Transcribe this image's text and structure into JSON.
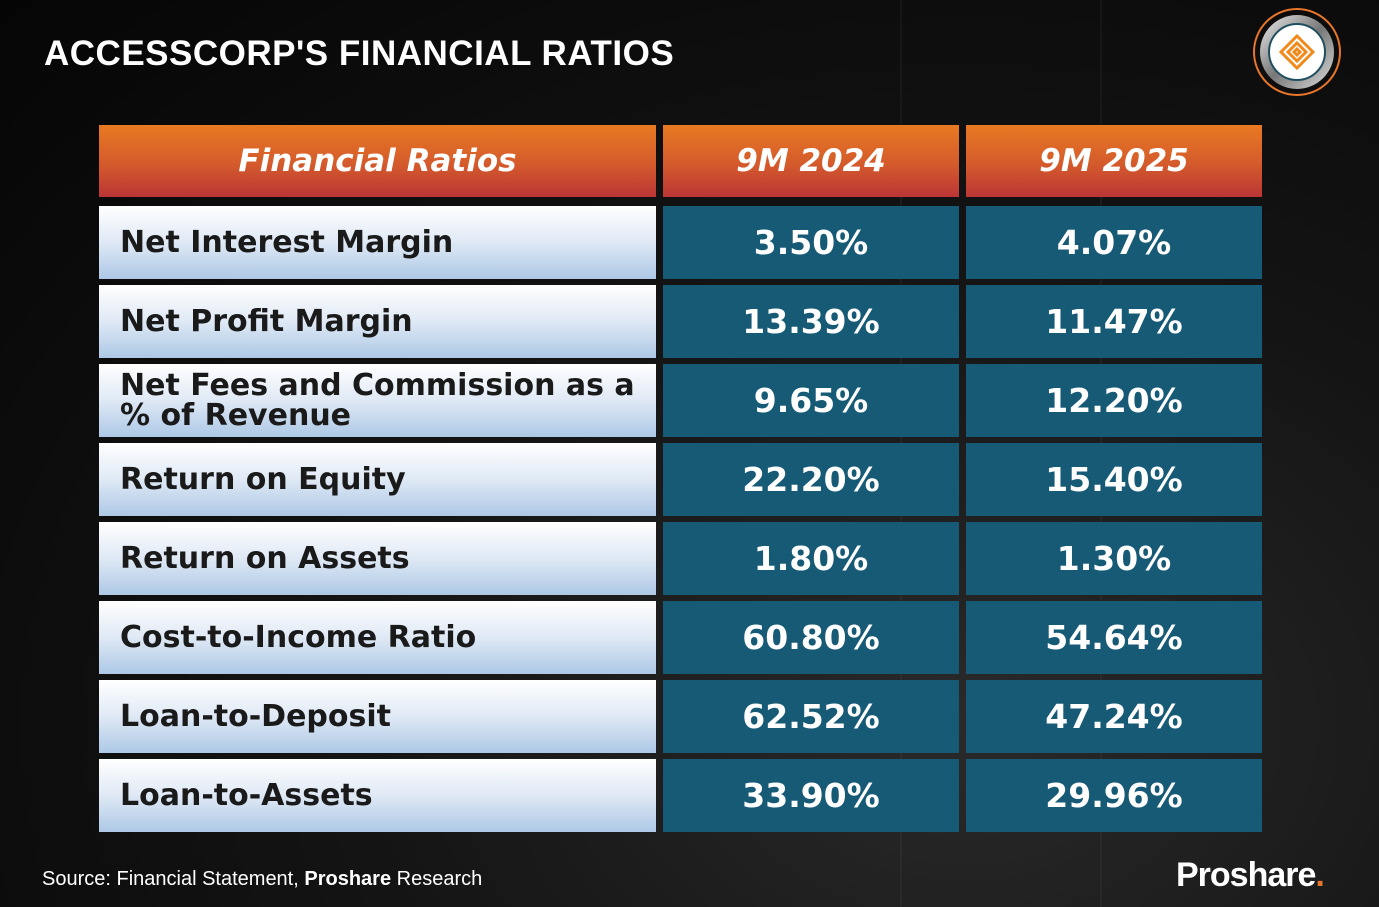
{
  "title": "ACCESSCORP'S FINANCIAL RATIOS",
  "chart_data": {
    "type": "table",
    "title": "ACCESSCORP'S FINANCIAL RATIOS",
    "columns": [
      "Financial Ratios",
      "9M 2024",
      "9M 2025"
    ],
    "rows": [
      {
        "label": "Net Interest Margin",
        "values": [
          "3.50%",
          "4.07%"
        ]
      },
      {
        "label": "Net Profit Margin",
        "values": [
          "13.39%",
          "11.47%"
        ]
      },
      {
        "label": "Net Fees and Commission as a % of Revenue",
        "values": [
          "9.65%",
          "12.20%"
        ]
      },
      {
        "label": "Return on Equity",
        "values": [
          "22.20%",
          "15.40%"
        ]
      },
      {
        "label": "Return on Assets",
        "values": [
          "1.80%",
          "1.30%"
        ]
      },
      {
        "label": "Cost-to-Income Ratio",
        "values": [
          "60.80%",
          "54.64%"
        ]
      },
      {
        "label": "Loan-to-Deposit",
        "values": [
          "62.52%",
          "47.24%"
        ]
      },
      {
        "label": "Loan-to-Assets",
        "values": [
          "33.90%",
          "29.96%"
        ]
      }
    ]
  },
  "footer": {
    "source_prefix": "Source: Financial Statement, ",
    "source_bold": "Proshare",
    "source_suffix": " Research",
    "brand": "Proshare",
    "brand_dot": "."
  },
  "colors": {
    "header": "#e87a22",
    "value_cell": "#175a76",
    "accent": "#e8762a"
  }
}
